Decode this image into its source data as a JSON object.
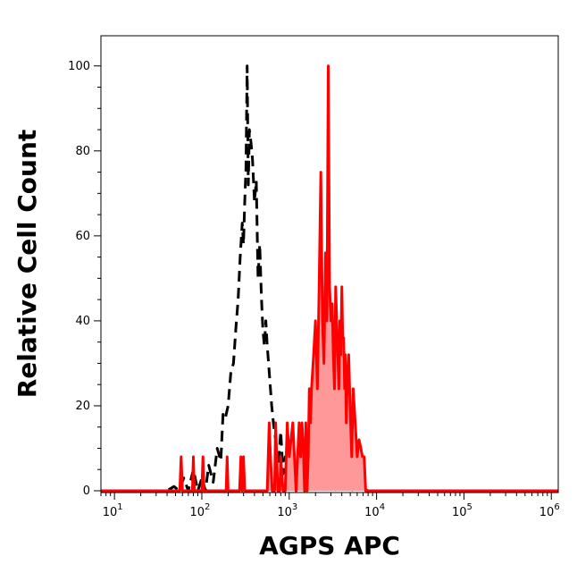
{
  "chart_data": {
    "type": "area",
    "xlabel": "AGPS APC",
    "ylabel": "Relative Cell Count",
    "xscale": "log",
    "xlim": [
      7,
      1200000
    ],
    "ylim": [
      0,
      105
    ],
    "x_ticks": [
      {
        "base": "10",
        "exp": "1",
        "value": 10
      },
      {
        "base": "10",
        "exp": "2",
        "value": 100
      },
      {
        "base": "10",
        "exp": "3",
        "value": 1000
      },
      {
        "base": "10",
        "exp": "4",
        "value": 10000
      },
      {
        "base": "10",
        "exp": "5",
        "value": 100000
      },
      {
        "base": "10",
        "exp": "6",
        "value": 1000000
      }
    ],
    "y_ticks": [
      {
        "label": "0",
        "value": 0
      },
      {
        "label": "20",
        "value": 20
      },
      {
        "label": "40",
        "value": 40
      },
      {
        "label": "60",
        "value": 60
      },
      {
        "label": "80",
        "value": 80
      },
      {
        "label": "100",
        "value": 100
      }
    ],
    "series": [
      {
        "style": "dashed",
        "color": "#000000",
        "fill": "none",
        "x": [
          7,
          40,
          48,
          55,
          62,
          70,
          80,
          90,
          100,
          110,
          120,
          135,
          150,
          165,
          175,
          185,
          200,
          215,
          230,
          245,
          260,
          275,
          290,
          300,
          310,
          320,
          330,
          340,
          350,
          365,
          380,
          400,
          420,
          440,
          460,
          480,
          500,
          520,
          540,
          560,
          580,
          600,
          630,
          660,
          700,
          750,
          800,
          850,
          900,
          1000,
          1100,
          1200,
          1300,
          1500,
          1800,
          2200,
          2600,
          3000,
          3500,
          4000,
          5000,
          6000,
          8000,
          1200000
        ],
        "y": [
          0,
          0,
          1,
          0,
          3,
          0,
          5,
          0,
          3,
          0,
          6,
          2,
          10,
          7,
          18,
          17,
          20,
          28,
          30,
          38,
          45,
          55,
          63,
          58,
          68,
          76,
          100,
          72,
          85,
          82,
          78,
          68,
          73,
          50,
          58,
          46,
          38,
          34,
          40,
          34,
          30,
          26,
          20,
          16,
          12,
          6,
          14,
          4,
          8,
          2,
          6,
          1,
          3,
          0,
          2,
          0,
          1,
          3,
          0,
          2,
          0,
          1,
          0,
          0
        ]
      },
      {
        "style": "solid",
        "color": "#ff0000",
        "fill": "#ff9999",
        "x": [
          7,
          56,
          58,
          60,
          63,
          70,
          78,
          80,
          82,
          90,
          100,
          103,
          106,
          115,
          170,
          190,
          195,
          200,
          205,
          220,
          270,
          280,
          290,
          300,
          310,
          320,
          330,
          340,
          360,
          420,
          560,
          590,
          610,
          640,
          680,
          700,
          740,
          780,
          800,
          850,
          900,
          950,
          1000,
          1100,
          1200,
          1300,
          1350,
          1400,
          1450,
          1500,
          1550,
          1600,
          1650,
          1700,
          1750,
          1800,
          1900,
          2000,
          2100,
          2200,
          2300,
          2400,
          2500,
          2600,
          2700,
          2800,
          2900,
          3000,
          3100,
          3200,
          3300,
          3400,
          3500,
          3600,
          3700,
          3800,
          3900,
          4000,
          4100,
          4200,
          4300,
          4400,
          4500,
          4600,
          4800,
          5000,
          5200,
          5400,
          5700,
          6000,
          6300,
          6600,
          6900,
          7200,
          7500,
          7800,
          8000,
          8300,
          8600,
          1200000
        ],
        "y": [
          0,
          0,
          8,
          0,
          0,
          0,
          0,
          8,
          0,
          0,
          0,
          8,
          0,
          0,
          0,
          0,
          8,
          0,
          0,
          0,
          0,
          8,
          0,
          8,
          0,
          0,
          0,
          0,
          0,
          0,
          0,
          16,
          8,
          0,
          0,
          16,
          0,
          0,
          8,
          0,
          0,
          16,
          8,
          16,
          0,
          16,
          8,
          16,
          10,
          0,
          16,
          0,
          8,
          24,
          16,
          24,
          32,
          40,
          24,
          48,
          75,
          40,
          30,
          56,
          40,
          100,
          48,
          40,
          44,
          32,
          24,
          48,
          40,
          32,
          24,
          40,
          32,
          48,
          36,
          36,
          24,
          32,
          16,
          24,
          32,
          18,
          8,
          24,
          16,
          8,
          12,
          10,
          8,
          8,
          0,
          0,
          0,
          0,
          0,
          0
        ]
      }
    ]
  }
}
